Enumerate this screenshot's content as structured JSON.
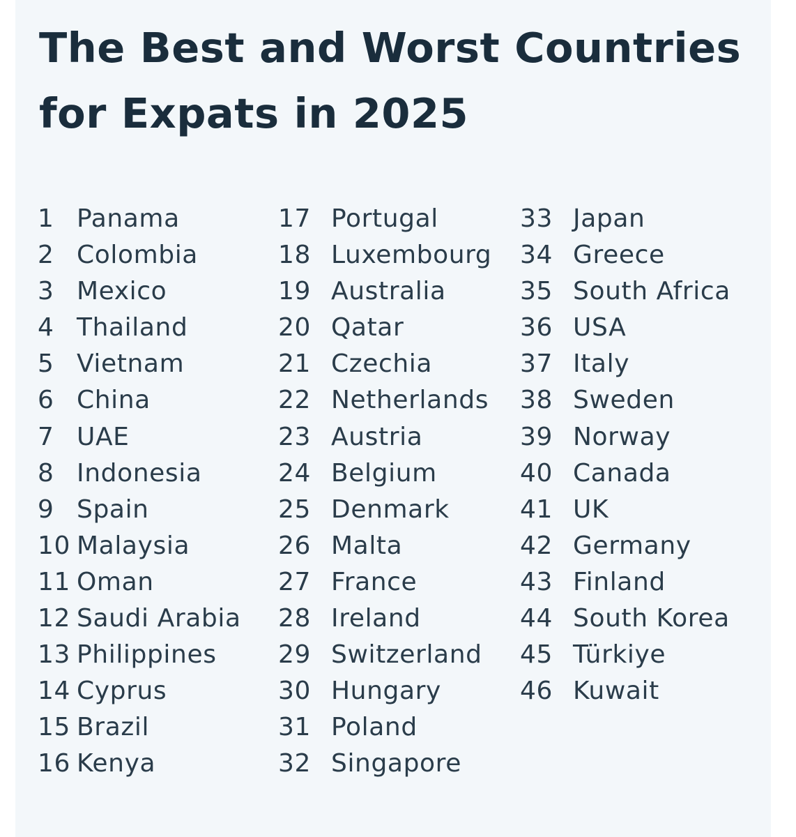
{
  "title": {
    "line1": "The Best and Worst Countries",
    "line2": "for Expats in 2025"
  },
  "columns": [
    [
      {
        "rank": "1",
        "country": "Panama"
      },
      {
        "rank": "2",
        "country": "Colombia"
      },
      {
        "rank": "3",
        "country": "Mexico"
      },
      {
        "rank": "4",
        "country": "Thailand"
      },
      {
        "rank": "5",
        "country": "Vietnam"
      },
      {
        "rank": "6",
        "country": "China"
      },
      {
        "rank": "7",
        "country": "UAE"
      },
      {
        "rank": "8",
        "country": "Indonesia"
      },
      {
        "rank": "9",
        "country": "Spain"
      },
      {
        "rank": "10",
        "country": "Malaysia"
      },
      {
        "rank": "11",
        "country": "Oman"
      },
      {
        "rank": "12",
        "country": "Saudi Arabia"
      },
      {
        "rank": "13",
        "country": "Philippines"
      },
      {
        "rank": "14",
        "country": "Cyprus"
      },
      {
        "rank": "15",
        "country": "Brazil"
      },
      {
        "rank": "16",
        "country": "Kenya"
      }
    ],
    [
      {
        "rank": "17",
        "country": "Portugal"
      },
      {
        "rank": "18",
        "country": "Luxembourg"
      },
      {
        "rank": "19",
        "country": "Australia"
      },
      {
        "rank": "20",
        "country": "Qatar"
      },
      {
        "rank": "21",
        "country": "Czechia"
      },
      {
        "rank": "22",
        "country": "Netherlands"
      },
      {
        "rank": "23",
        "country": "Austria"
      },
      {
        "rank": "24",
        "country": "Belgium"
      },
      {
        "rank": "25",
        "country": "Denmark"
      },
      {
        "rank": "26",
        "country": "Malta"
      },
      {
        "rank": "27",
        "country": "France"
      },
      {
        "rank": "28",
        "country": "Ireland"
      },
      {
        "rank": "29",
        "country": "Switzerland"
      },
      {
        "rank": "30",
        "country": "Hungary"
      },
      {
        "rank": "31",
        "country": "Poland"
      },
      {
        "rank": "32",
        "country": "Singapore"
      }
    ],
    [
      {
        "rank": "33",
        "country": "Japan"
      },
      {
        "rank": "34",
        "country": "Greece"
      },
      {
        "rank": "35",
        "country": "South Africa"
      },
      {
        "rank": "36",
        "country": "USA"
      },
      {
        "rank": "37",
        "country": "Italy"
      },
      {
        "rank": "38",
        "country": "Sweden"
      },
      {
        "rank": "39",
        "country": "Norway"
      },
      {
        "rank": "40",
        "country": "Canada"
      },
      {
        "rank": "41",
        "country": "UK"
      },
      {
        "rank": "42",
        "country": "Germany"
      },
      {
        "rank": "43",
        "country": "Finland"
      },
      {
        "rank": "44",
        "country": "South Korea"
      },
      {
        "rank": "45",
        "country": "Türkiye"
      },
      {
        "rank": "46",
        "country": "Kuwait"
      }
    ]
  ]
}
